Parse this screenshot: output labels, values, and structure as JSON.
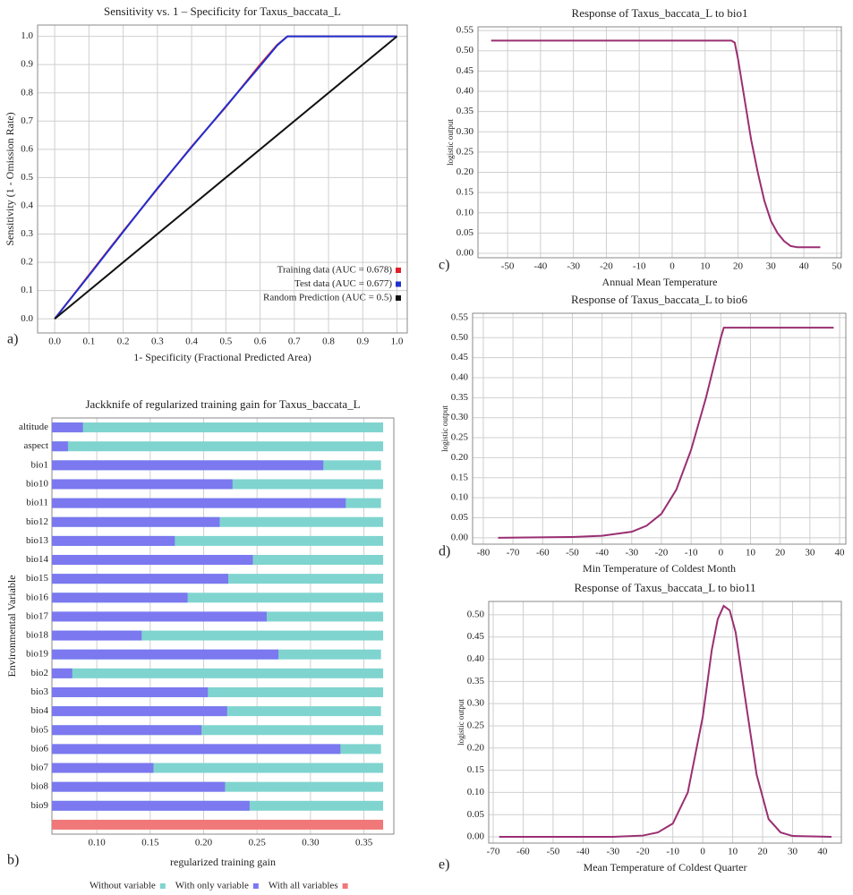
{
  "chart_data": [
    {
      "type": "line",
      "panel_label": "a)",
      "title": "Sensitivity vs. 1 – Specificity for Taxus_baccata_L",
      "xlabel": "1- Specificity (Fractional Predicted Area)",
      "ylabel": "Sensitivity (1 - Omission Rate)",
      "xlim": [
        -0.05,
        1.03
      ],
      "ylim": [
        -0.05,
        1.04
      ],
      "xticks": [
        {
          "value": 0,
          "label": "0.0"
        },
        0.1,
        0.2,
        0.3,
        0.4,
        0.5,
        0.6,
        0.7,
        0.8,
        0.9,
        {
          "value": 1,
          "label": "1.0"
        }
      ],
      "yticks": [
        {
          "value": 0,
          "label": "0.0"
        },
        0.1,
        0.2,
        0.3,
        0.4,
        0.5,
        0.6,
        0.7,
        0.8,
        0.9,
        {
          "value": 1,
          "label": "1.0"
        }
      ],
      "grid": true,
      "legend": "lower right",
      "series": [
        {
          "name": "Training data (AUC = 0.678)",
          "color": "#e0202a",
          "x": [
            0,
            0.1,
            0.2,
            0.3,
            0.4,
            0.5,
            0.6,
            0.65,
            0.68,
            1.0
          ],
          "values": [
            0,
            0.155,
            0.31,
            0.46,
            0.61,
            0.75,
            0.9,
            0.97,
            1.0,
            1.0
          ]
        },
        {
          "name": "Test data  (AUC = 0.677)",
          "color": "#2030d0",
          "x": [
            0,
            0.1,
            0.2,
            0.3,
            0.4,
            0.5,
            0.6,
            0.65,
            0.68,
            1.0
          ],
          "values": [
            0,
            0.153,
            0.308,
            0.462,
            0.608,
            0.752,
            0.895,
            0.968,
            1.0,
            1.0
          ]
        },
        {
          "name": "Random Prediction  (AUC = 0.5)",
          "color": "#111111",
          "x": [
            0,
            1.0
          ],
          "values": [
            0,
            1.0
          ]
        }
      ]
    },
    {
      "type": "barh",
      "panel_label": "b)",
      "title": "Jackknife of regularized training gain for Taxus_baccata_L",
      "xlabel": "regularized training gain",
      "ylabel": "Environmental Variable",
      "xlim": [
        0.058,
        0.378
      ],
      "xticks": [
        {
          "value": 0.1,
          "label": "0.10"
        },
        0.15,
        {
          "value": 0.2,
          "label": "0.20"
        },
        0.25,
        {
          "value": 0.3,
          "label": "0.30"
        },
        0.35
      ],
      "grid": true,
      "legend": "bottom",
      "categories": [
        "altitude",
        "aspect",
        "bio1",
        "bio10",
        "bio11",
        "bio12",
        "bio13",
        "bio14",
        "bio15",
        "bio16",
        "bio17",
        "bio18",
        "bio19",
        "bio2",
        "bio3",
        "bio4",
        "bio5",
        "bio6",
        "bio7",
        "bio8",
        "bio9",
        null
      ],
      "series": [
        {
          "name": "Without variable",
          "color": "#7fd4cf",
          "values": [
            0.368,
            0.368,
            0.366,
            0.368,
            0.366,
            0.368,
            0.368,
            0.368,
            0.368,
            0.368,
            0.368,
            0.368,
            0.366,
            0.368,
            0.368,
            0.366,
            0.368,
            0.366,
            0.368,
            0.368,
            0.368,
            null
          ]
        },
        {
          "name": "With only variable",
          "color": "#7b78f0",
          "values": [
            0.087,
            0.073,
            0.312,
            0.227,
            0.333,
            0.215,
            0.173,
            0.246,
            0.223,
            0.185,
            0.259,
            0.142,
            0.27,
            0.077,
            0.204,
            0.222,
            0.198,
            0.328,
            0.153,
            0.22,
            0.243,
            null
          ]
        },
        {
          "name": "With all variables",
          "color": "#f07878",
          "values": [
            null,
            null,
            null,
            null,
            null,
            null,
            null,
            null,
            null,
            null,
            null,
            null,
            null,
            null,
            null,
            null,
            null,
            null,
            null,
            null,
            null,
            0.368
          ]
        }
      ]
    },
    {
      "type": "line",
      "panel_label": "c)",
      "title": "Response of Taxus_baccata_L to bio1",
      "xlabel": "Annual Mean Temperature",
      "ylabel": "logistic output",
      "xlim": [
        -59,
        51.4
      ],
      "ylim": [
        -0.011,
        0.559
      ],
      "xticks": [
        -50,
        -40,
        -30,
        -20,
        -10,
        0,
        10,
        20,
        30,
        40,
        50
      ],
      "yticks": [
        {
          "value": 0,
          "label": "0.00"
        },
        0.05,
        {
          "value": 0.1,
          "label": "0.10"
        },
        0.15,
        {
          "value": 0.2,
          "label": "0.20"
        },
        0.25,
        {
          "value": 0.3,
          "label": "0.30"
        },
        0.35,
        {
          "value": 0.4,
          "label": "0.40"
        },
        0.45,
        {
          "value": 0.5,
          "label": "0.50"
        },
        0.55
      ],
      "grid": true,
      "series": [
        {
          "color": "#9a2f72",
          "x": [
            -55,
            18,
            19,
            20,
            22,
            24,
            26,
            28,
            30,
            32,
            34,
            36,
            38,
            45
          ],
          "values": [
            0.525,
            0.525,
            0.52,
            0.48,
            0.38,
            0.28,
            0.2,
            0.13,
            0.08,
            0.05,
            0.03,
            0.018,
            0.015,
            0.015
          ]
        }
      ]
    },
    {
      "type": "line",
      "panel_label": "d)",
      "title": "Response of Taxus_baccata_L to bio6",
      "xlabel": "Min Temperature of Coldest Month",
      "ylabel": "logistic output",
      "xlim": [
        -83.6,
        42.1
      ],
      "ylim": [
        -0.016,
        0.561
      ],
      "xticks": [
        -80,
        -70,
        -60,
        -50,
        -40,
        -30,
        -20,
        -10,
        0,
        10,
        20,
        30,
        40
      ],
      "yticks": [
        {
          "value": 0,
          "label": "0.00"
        },
        0.05,
        {
          "value": 0.1,
          "label": "0.10"
        },
        0.15,
        {
          "value": 0.2,
          "label": "0.20"
        },
        0.25,
        {
          "value": 0.3,
          "label": "0.30"
        },
        0.35,
        {
          "value": 0.4,
          "label": "0.40"
        },
        0.45,
        {
          "value": 0.5,
          "label": "0.50"
        },
        0.55
      ],
      "grid": true,
      "series": [
        {
          "color": "#9a2f72",
          "x": [
            -75,
            -50,
            -40,
            -30,
            -25,
            -20,
            -15,
            -10,
            -5,
            -2,
            0,
            1,
            38
          ],
          "values": [
            0,
            0.002,
            0.005,
            0.015,
            0.03,
            0.06,
            0.12,
            0.22,
            0.35,
            0.44,
            0.5,
            0.525,
            0.525
          ]
        }
      ]
    },
    {
      "type": "line",
      "panel_label": "e)",
      "title": "Response of Taxus_baccata_L to bio11",
      "xlabel": "Mean Temperature of Coldest Quarter",
      "ylabel": "logistic output",
      "xlim": [
        -71.5,
        46.3
      ],
      "ylim": [
        -0.014,
        0.53
      ],
      "xticks": [
        -70,
        -60,
        -50,
        -40,
        -30,
        -20,
        -10,
        0,
        10,
        20,
        30,
        40
      ],
      "yticks": [
        {
          "value": 0,
          "label": "0.00"
        },
        0.05,
        {
          "value": 0.1,
          "label": "0.10"
        },
        0.15,
        {
          "value": 0.2,
          "label": "0.20"
        },
        0.25,
        {
          "value": 0.3,
          "label": "0.30"
        },
        0.35,
        {
          "value": 0.4,
          "label": "0.40"
        },
        0.45,
        {
          "value": 0.5,
          "label": "0.50"
        }
      ],
      "grid": true,
      "series": [
        {
          "color": "#9a2f72",
          "x": [
            -68,
            -30,
            -20,
            -15,
            -10,
            -5,
            0,
            3,
            5,
            7,
            9,
            11,
            14,
            18,
            22,
            26,
            30,
            43
          ],
          "values": [
            0,
            0,
            0.003,
            0.01,
            0.03,
            0.1,
            0.27,
            0.42,
            0.49,
            0.52,
            0.51,
            0.46,
            0.32,
            0.14,
            0.04,
            0.01,
            0.002,
            0
          ]
        }
      ]
    }
  ]
}
